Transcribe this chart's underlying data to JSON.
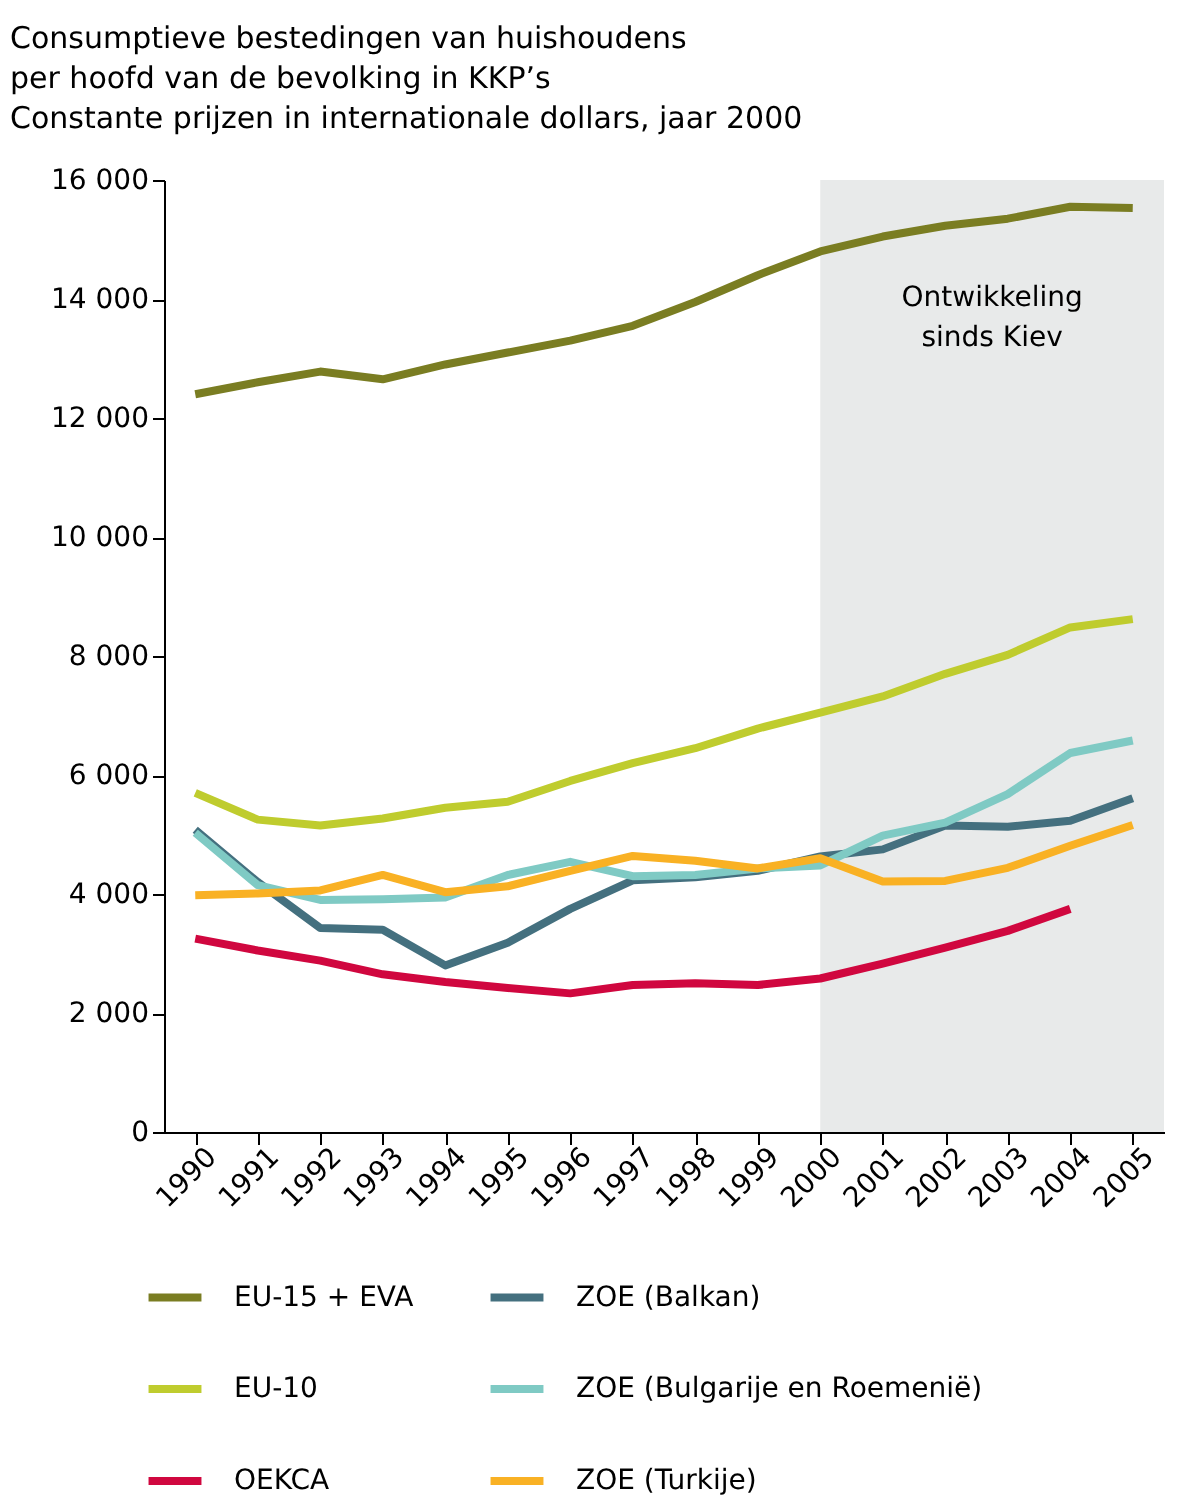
{
  "chart_data": {
    "type": "line",
    "title": "Consumptieve bestedingen van huishoudens\nper hoofd van de bevolking in KKP’s\nConstante prijzen in internationale dollars, jaar 2000",
    "x": [
      1990,
      1991,
      1992,
      1993,
      1994,
      1995,
      1996,
      1997,
      1998,
      1999,
      2000,
      2001,
      2002,
      2003,
      2004,
      2005
    ],
    "xlim": [
      1989.5,
      2005.5
    ],
    "xticks": [
      1990,
      1991,
      1992,
      1993,
      1994,
      1995,
      1996,
      1997,
      1998,
      1999,
      2000,
      2001,
      2002,
      2003,
      2004,
      2005
    ],
    "ylim": [
      0,
      16000
    ],
    "yticks": [
      {
        "value": 0,
        "label": "0"
      },
      {
        "value": 2000,
        "label": "2 000"
      },
      {
        "value": 4000,
        "label": "4 000"
      },
      {
        "value": 6000,
        "label": "6 000"
      },
      {
        "value": 8000,
        "label": "8 000"
      },
      {
        "value": 10000,
        "label": "10 000"
      },
      {
        "value": 12000,
        "label": "12 000"
      },
      {
        "value": 14000,
        "label": "14 000"
      },
      {
        "value": 16000,
        "label": "16 000"
      }
    ],
    "series": [
      {
        "name": "EU-15 + EVA",
        "color": "#7a7d22",
        "values": [
          12400,
          12600,
          12780,
          12650,
          12900,
          13100,
          13300,
          13550,
          13950,
          14400,
          14800,
          15050,
          15230,
          15350,
          15550,
          15530
        ]
      },
      {
        "name": "EU-10",
        "color": "#bfcc2e",
        "values": [
          5700,
          5250,
          5150,
          5270,
          5450,
          5550,
          5900,
          6200,
          6450,
          6780,
          7050,
          7320,
          7700,
          8020,
          8480,
          8620
        ]
      },
      {
        "name": "OEKCA",
        "color": "#d0073f",
        "values": [
          3250,
          3050,
          2880,
          2650,
          2520,
          2420,
          2330,
          2470,
          2500,
          2470,
          2580,
          2830,
          3100,
          3380,
          3750,
          null
        ]
      },
      {
        "name": "ZOE (Balkan)",
        "color": "#44707f",
        "values": [
          5080,
          4200,
          3430,
          3400,
          2800,
          3180,
          3750,
          4230,
          4280,
          4390,
          4630,
          4750,
          5150,
          5130,
          5230,
          5610
        ]
      },
      {
        "name": "ZOE (Bulgarije en Roemenië)",
        "color": "#7fcac4",
        "values": [
          5030,
          4150,
          3900,
          3910,
          3940,
          4320,
          4540,
          4300,
          4320,
          4430,
          4480,
          4980,
          5200,
          5680,
          6370,
          6580
        ]
      },
      {
        "name": "ZOE (Turkije)",
        "color": "#f9b124",
        "values": [
          3980,
          4010,
          4060,
          4320,
          4030,
          4130,
          4390,
          4640,
          4560,
          4430,
          4600,
          4210,
          4220,
          4440,
          4810,
          5160
        ]
      }
    ],
    "bands": [
      {
        "axis": "x",
        "from": 2000,
        "to": 2005.5,
        "label": "Ontwikkeling sinds Kiev",
        "color": "#e8eaea"
      }
    ],
    "legend": "bottom",
    "grid": false,
    "line_style": "solid"
  }
}
